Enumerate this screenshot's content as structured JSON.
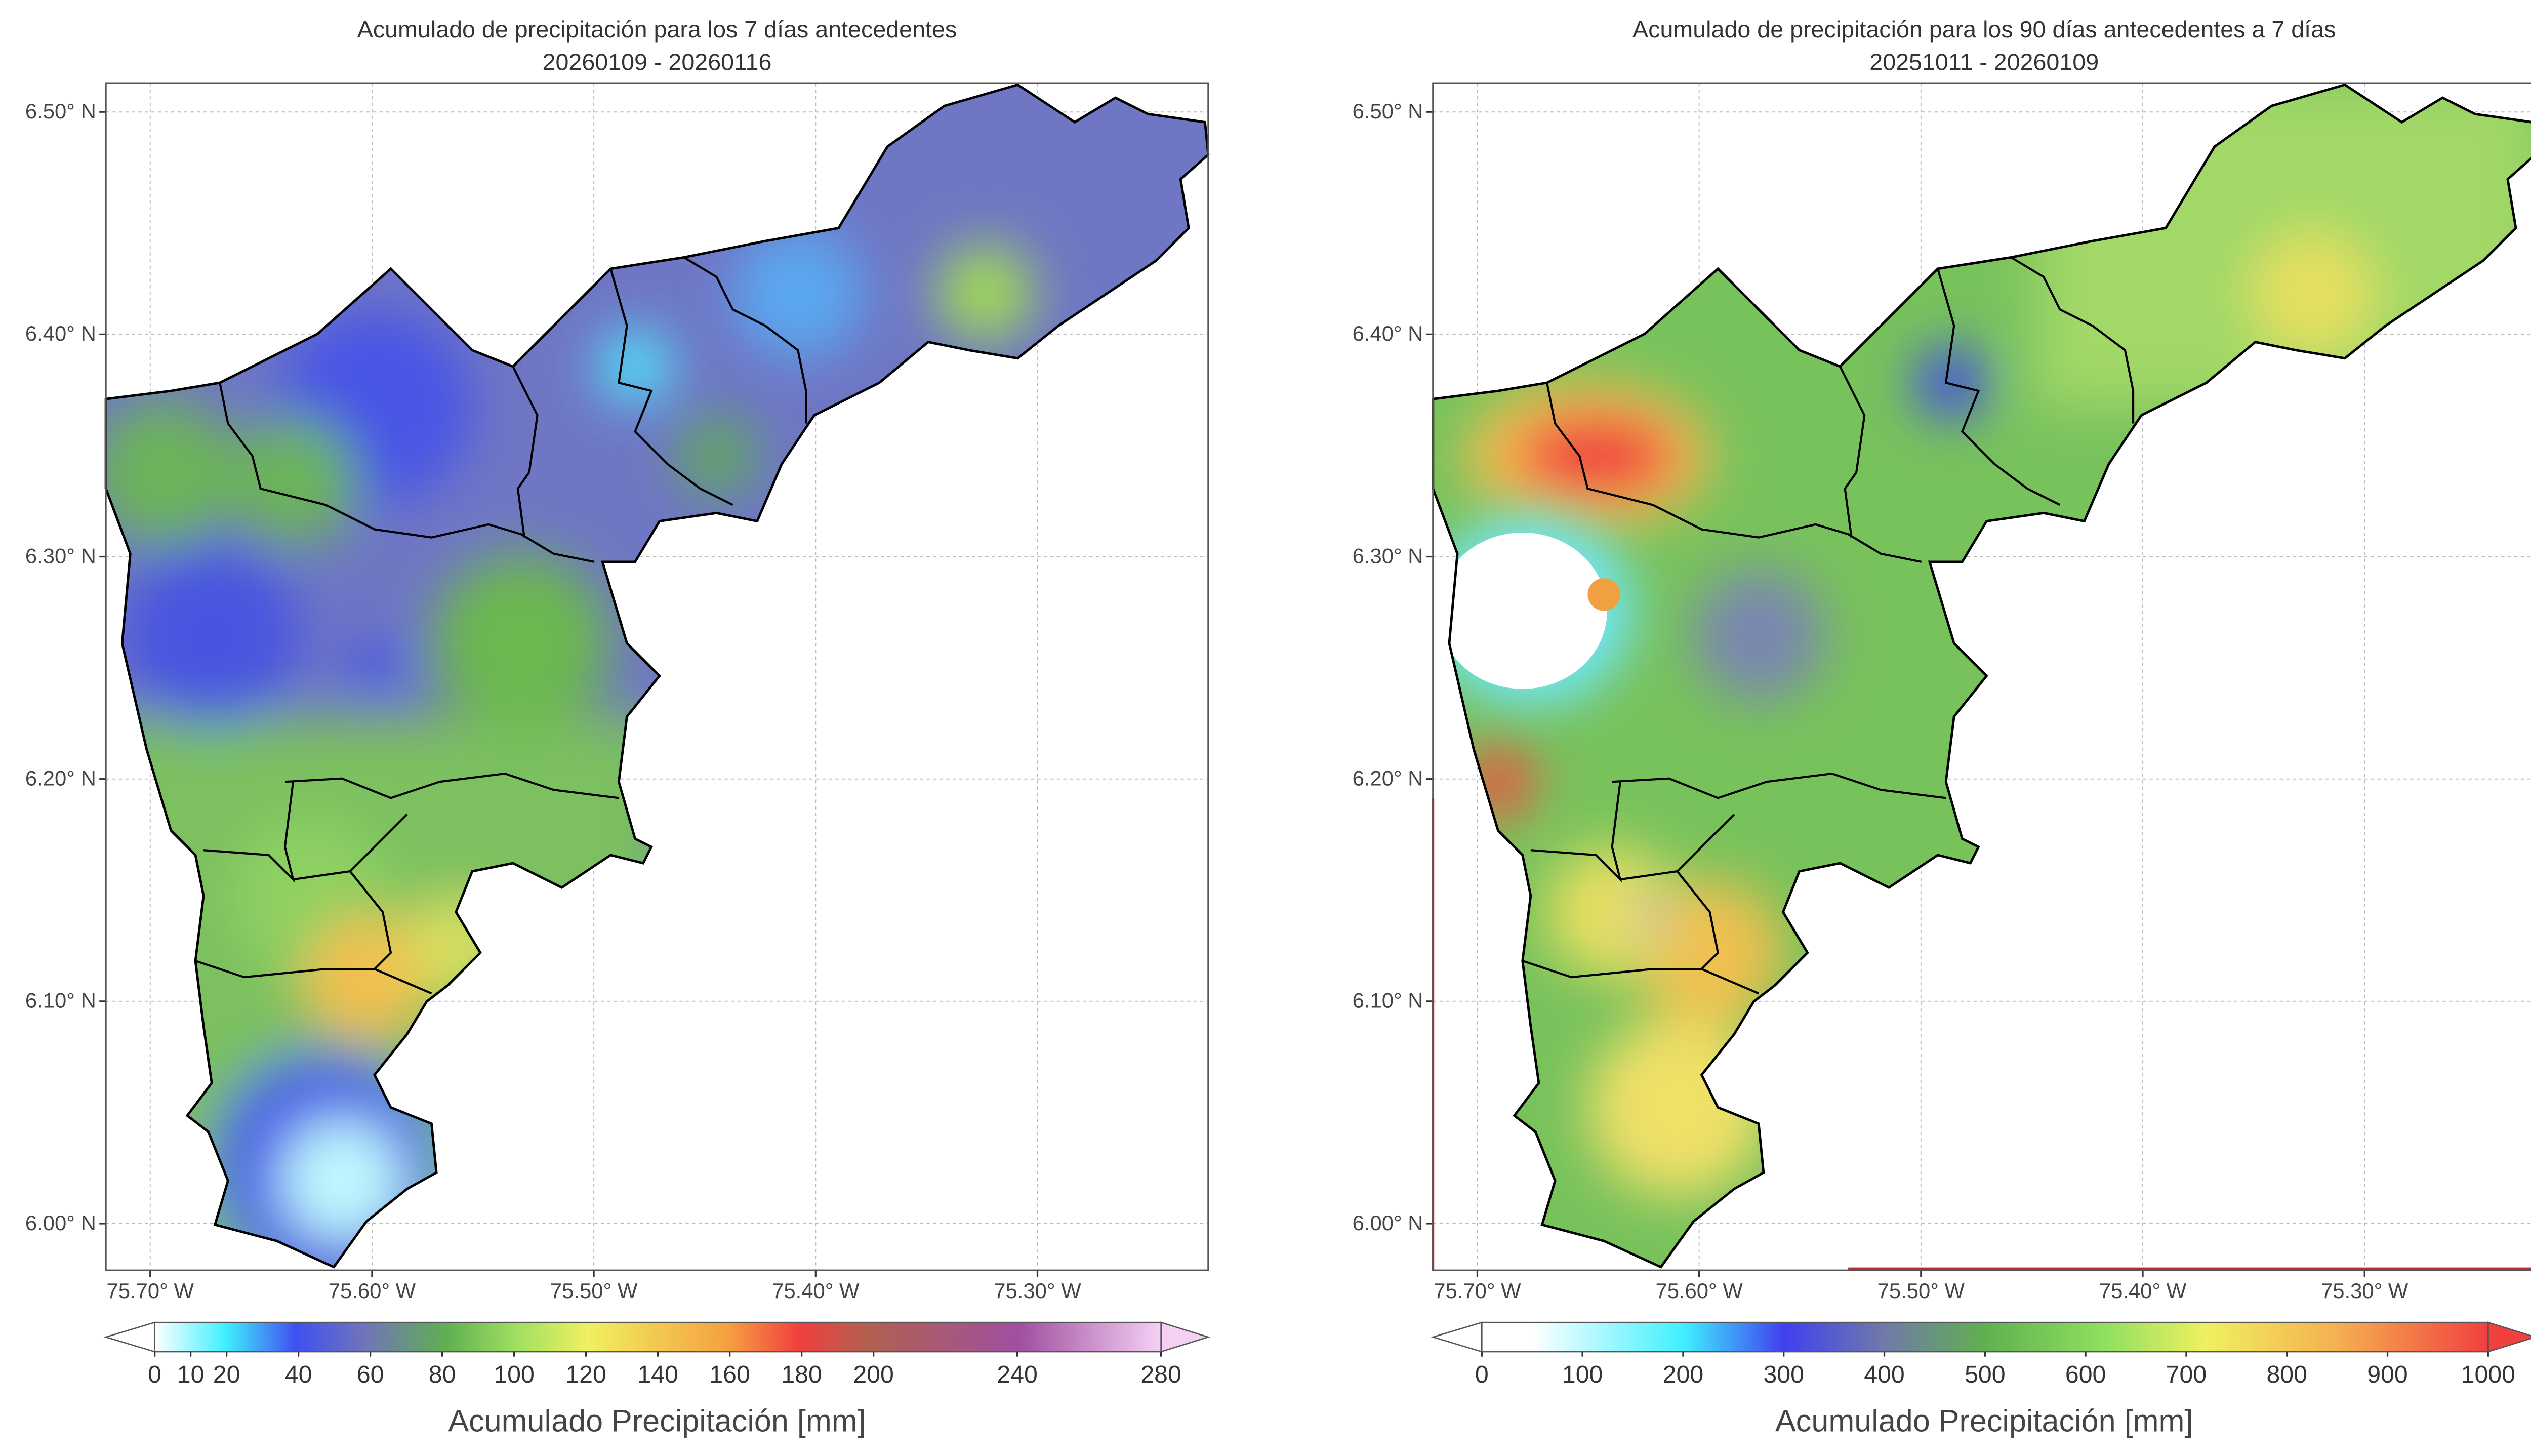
{
  "panels": [
    {
      "title": "Acumulado de precipitación para los 7 días antecedentes",
      "subtitle": "20260109 - 20260116",
      "xlim": [
        -75.72,
        -75.223
      ],
      "ylim": [
        5.979,
        6.513
      ],
      "xticks": [
        {
          "value": -75.7,
          "label": "75.70° W"
        },
        {
          "value": -75.6,
          "label": "75.60° W"
        },
        {
          "value": -75.5,
          "label": "75.50° W"
        },
        {
          "value": -75.4,
          "label": "75.40° W"
        },
        {
          "value": -75.3,
          "label": "75.30° W"
        }
      ],
      "yticks": [
        {
          "value": 6.0,
          "label": "6.00° N"
        },
        {
          "value": 6.1,
          "label": "6.10° N"
        },
        {
          "value": 6.2,
          "label": "6.20° N"
        },
        {
          "value": 6.3,
          "label": "6.30° N"
        },
        {
          "value": 6.4,
          "label": "6.40° N"
        },
        {
          "value": 6.5,
          "label": "6.50° N"
        }
      ],
      "colorbar": {
        "label": "Acumulado Precipitación [mm]",
        "range": [
          0,
          280
        ],
        "ticks": [
          0,
          10,
          20,
          40,
          60,
          80,
          100,
          120,
          140,
          160,
          180,
          200,
          240,
          280
        ]
      }
    },
    {
      "title": "Acumulado de precipitación para los 90 días antecedentes a 7 días",
      "subtitle": "20251011 - 20260109",
      "xlim": [
        -75.72,
        -75.223
      ],
      "ylim": [
        5.979,
        6.513
      ],
      "xticks": [
        {
          "value": -75.7,
          "label": "75.70° W"
        },
        {
          "value": -75.6,
          "label": "75.60° W"
        },
        {
          "value": -75.5,
          "label": "75.50° W"
        },
        {
          "value": -75.4,
          "label": "75.40° W"
        },
        {
          "value": -75.3,
          "label": "75.30° W"
        }
      ],
      "yticks": [
        {
          "value": 6.0,
          "label": "6.00° N"
        },
        {
          "value": 6.1,
          "label": "6.10° N"
        },
        {
          "value": 6.2,
          "label": "6.20° N"
        },
        {
          "value": 6.3,
          "label": "6.30° N"
        },
        {
          "value": 6.4,
          "label": "6.40° N"
        },
        {
          "value": 6.5,
          "label": "6.50° N"
        }
      ],
      "colorbar": {
        "label": "Acumulado Precipitación [mm]",
        "range": [
          0,
          1000
        ],
        "ticks": [
          0,
          100,
          200,
          300,
          400,
          500,
          600,
          700,
          800,
          900,
          1000
        ]
      }
    }
  ]
}
